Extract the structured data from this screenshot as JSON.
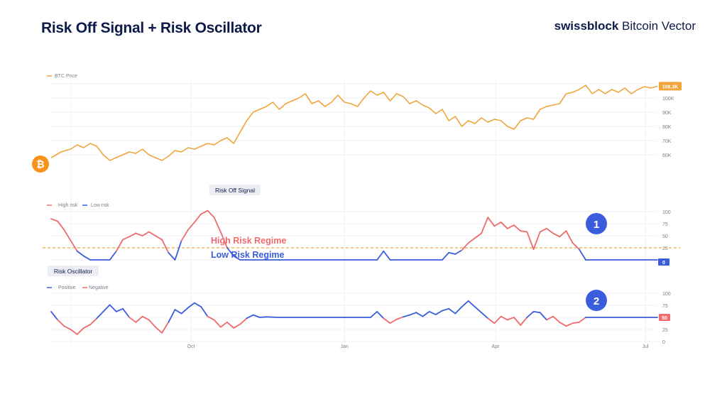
{
  "header": {
    "title": "Risk Off Signal + Risk Oscillator",
    "brand_bold": "swissblock",
    "brand_rest": " Bitcoin Vector"
  },
  "colors": {
    "btc": "#f0a53b",
    "high": "#ee6b6e",
    "low": "#3b5ddc",
    "badge": "#3b5ddc",
    "title": "#0d1b4b"
  },
  "icons": {
    "btc_logo": "bitcoin-icon"
  },
  "chart_data": [
    {
      "type": "line",
      "legend": "BTC Price",
      "last_value_label": "108.3K",
      "y_ticks": [
        "110K",
        "100K",
        "90K",
        "80K",
        "70K",
        "60K"
      ],
      "y_tick_values": [
        110000,
        100000,
        90000,
        80000,
        70000,
        60000
      ],
      "ylim": [
        50000,
        112000
      ],
      "x_ticks": [
        "Oct",
        "Jan",
        "Apr",
        "Jul"
      ],
      "points": [
        [
          0,
          58000
        ],
        [
          3,
          62000
        ],
        [
          6,
          64000
        ],
        [
          8,
          67000
        ],
        [
          10,
          65000
        ],
        [
          12,
          68000
        ],
        [
          14,
          66000
        ],
        [
          16,
          60000
        ],
        [
          18,
          56000
        ],
        [
          20,
          58000
        ],
        [
          22,
          60000
        ],
        [
          24,
          62000
        ],
        [
          26,
          61000
        ],
        [
          28,
          64000
        ],
        [
          30,
          60000
        ],
        [
          32,
          58000
        ],
        [
          34,
          56000
        ],
        [
          36,
          59000
        ],
        [
          38,
          63000
        ],
        [
          40,
          62000
        ],
        [
          42,
          65000
        ],
        [
          44,
          64000
        ],
        [
          46,
          66000
        ],
        [
          48,
          68000
        ],
        [
          50,
          67000
        ],
        [
          52,
          70000
        ],
        [
          54,
          72000
        ],
        [
          56,
          68000
        ],
        [
          58,
          76000
        ],
        [
          60,
          84000
        ],
        [
          62,
          90000
        ],
        [
          64,
          92000
        ],
        [
          66,
          94000
        ],
        [
          68,
          97000
        ],
        [
          70,
          92000
        ],
        [
          72,
          96000
        ],
        [
          74,
          98000
        ],
        [
          76,
          100000
        ],
        [
          78,
          103000
        ],
        [
          80,
          96000
        ],
        [
          82,
          98000
        ],
        [
          84,
          94000
        ],
        [
          86,
          97000
        ],
        [
          88,
          102000
        ],
        [
          90,
          97000
        ],
        [
          92,
          96000
        ],
        [
          94,
          94000
        ],
        [
          96,
          100000
        ],
        [
          98,
          105000
        ],
        [
          100,
          102000
        ],
        [
          102,
          104000
        ],
        [
          104,
          98000
        ],
        [
          106,
          103000
        ],
        [
          108,
          101000
        ],
        [
          110,
          96000
        ],
        [
          112,
          98000
        ],
        [
          114,
          95000
        ],
        [
          116,
          93000
        ],
        [
          118,
          89000
        ],
        [
          120,
          92000
        ],
        [
          122,
          84000
        ],
        [
          124,
          87000
        ],
        [
          126,
          80000
        ],
        [
          128,
          84000
        ],
        [
          130,
          82000
        ],
        [
          132,
          86000
        ],
        [
          134,
          83000
        ],
        [
          136,
          85000
        ],
        [
          138,
          84000
        ],
        [
          140,
          80000
        ],
        [
          142,
          78000
        ],
        [
          144,
          84000
        ],
        [
          146,
          86000
        ],
        [
          148,
          85000
        ],
        [
          150,
          92000
        ],
        [
          152,
          94000
        ],
        [
          154,
          95000
        ],
        [
          156,
          96000
        ],
        [
          158,
          103000
        ],
        [
          160,
          104000
        ],
        [
          162,
          106000
        ],
        [
          164,
          109000
        ],
        [
          166,
          103000
        ],
        [
          168,
          106000
        ],
        [
          170,
          103000
        ],
        [
          172,
          106000
        ],
        [
          174,
          104000
        ],
        [
          176,
          107000
        ],
        [
          178,
          103000
        ],
        [
          180,
          106000
        ],
        [
          182,
          108000
        ],
        [
          184,
          107000
        ],
        [
          186,
          108300
        ]
      ]
    },
    {
      "type": "line",
      "label": "Risk Off Signal",
      "legend": [
        "High risk",
        "Low risk"
      ],
      "y_ticks": [
        "100",
        "75",
        "50",
        "25",
        "0"
      ],
      "y_tick_values": [
        100,
        75,
        50,
        25,
        0
      ],
      "ylim": [
        0,
        100
      ],
      "threshold": 25,
      "annotations": [
        "High Risk Regime",
        "Low Risk Regime"
      ],
      "badge": "1",
      "last_value_label": "0",
      "points": [
        [
          0,
          85
        ],
        [
          2,
          80
        ],
        [
          4,
          62
        ],
        [
          6,
          40
        ],
        [
          8,
          18
        ],
        [
          10,
          8
        ],
        [
          12,
          0
        ],
        [
          14,
          0
        ],
        [
          16,
          0
        ],
        [
          18,
          0
        ],
        [
          20,
          18
        ],
        [
          22,
          42
        ],
        [
          24,
          48
        ],
        [
          26,
          55
        ],
        [
          28,
          50
        ],
        [
          30,
          58
        ],
        [
          32,
          50
        ],
        [
          34,
          42
        ],
        [
          36,
          15
        ],
        [
          38,
          0
        ],
        [
          40,
          40
        ],
        [
          42,
          62
        ],
        [
          44,
          78
        ],
        [
          46,
          95
        ],
        [
          48,
          102
        ],
        [
          50,
          88
        ],
        [
          52,
          58
        ],
        [
          54,
          25
        ],
        [
          56,
          8
        ],
        [
          58,
          0
        ],
        [
          60,
          0
        ],
        [
          70,
          0
        ],
        [
          80,
          0
        ],
        [
          90,
          0
        ],
        [
          100,
          0
        ],
        [
          102,
          18
        ],
        [
          104,
          0
        ],
        [
          110,
          0
        ],
        [
          120,
          0
        ],
        [
          122,
          15
        ],
        [
          124,
          12
        ],
        [
          126,
          20
        ],
        [
          128,
          35
        ],
        [
          130,
          45
        ],
        [
          132,
          55
        ],
        [
          134,
          88
        ],
        [
          136,
          70
        ],
        [
          138,
          78
        ],
        [
          140,
          65
        ],
        [
          142,
          72
        ],
        [
          144,
          60
        ],
        [
          146,
          58
        ],
        [
          148,
          22
        ],
        [
          150,
          58
        ],
        [
          152,
          65
        ],
        [
          154,
          55
        ],
        [
          156,
          48
        ],
        [
          158,
          60
        ],
        [
          160,
          35
        ],
        [
          162,
          22
        ],
        [
          164,
          0
        ],
        [
          170,
          0
        ],
        [
          180,
          0
        ],
        [
          186,
          0
        ]
      ]
    },
    {
      "type": "line",
      "label": "Risk Oscillator",
      "legend": [
        "Positive",
        "Negative"
      ],
      "y_ticks": [
        "100",
        "75",
        "50",
        "25",
        "0"
      ],
      "y_tick_values": [
        100,
        75,
        50,
        25,
        0
      ],
      "ylim": [
        0,
        100
      ],
      "neutral": 50,
      "badge": "2",
      "last_value_label": "50",
      "points": [
        [
          0,
          62
        ],
        [
          2,
          45
        ],
        [
          4,
          32
        ],
        [
          6,
          25
        ],
        [
          8,
          15
        ],
        [
          10,
          28
        ],
        [
          12,
          35
        ],
        [
          14,
          48
        ],
        [
          16,
          62
        ],
        [
          18,
          76
        ],
        [
          20,
          62
        ],
        [
          22,
          68
        ],
        [
          24,
          50
        ],
        [
          26,
          40
        ],
        [
          28,
          52
        ],
        [
          30,
          45
        ],
        [
          32,
          30
        ],
        [
          34,
          18
        ],
        [
          36,
          40
        ],
        [
          38,
          66
        ],
        [
          40,
          58
        ],
        [
          42,
          70
        ],
        [
          44,
          80
        ],
        [
          46,
          72
        ],
        [
          48,
          52
        ],
        [
          50,
          45
        ],
        [
          52,
          30
        ],
        [
          54,
          40
        ],
        [
          56,
          28
        ],
        [
          58,
          36
        ],
        [
          60,
          48
        ],
        [
          62,
          55
        ],
        [
          64,
          50
        ],
        [
          66,
          51
        ],
        [
          70,
          50
        ],
        [
          80,
          50
        ],
        [
          90,
          50
        ],
        [
          96,
          50
        ],
        [
          98,
          50
        ],
        [
          100,
          62
        ],
        [
          102,
          48
        ],
        [
          104,
          38
        ],
        [
          106,
          46
        ],
        [
          108,
          51
        ],
        [
          110,
          55
        ],
        [
          112,
          60
        ],
        [
          114,
          52
        ],
        [
          116,
          62
        ],
        [
          118,
          56
        ],
        [
          120,
          64
        ],
        [
          122,
          68
        ],
        [
          124,
          58
        ],
        [
          126,
          72
        ],
        [
          128,
          84
        ],
        [
          130,
          72
        ],
        [
          132,
          60
        ],
        [
          134,
          48
        ],
        [
          136,
          38
        ],
        [
          138,
          52
        ],
        [
          140,
          45
        ],
        [
          142,
          50
        ],
        [
          144,
          34
        ],
        [
          146,
          50
        ],
        [
          148,
          62
        ],
        [
          150,
          60
        ],
        [
          152,
          45
        ],
        [
          154,
          52
        ],
        [
          156,
          40
        ],
        [
          158,
          32
        ],
        [
          160,
          38
        ],
        [
          162,
          40
        ],
        [
          164,
          50
        ],
        [
          170,
          50
        ],
        [
          180,
          50
        ],
        [
          186,
          50
        ]
      ]
    }
  ]
}
